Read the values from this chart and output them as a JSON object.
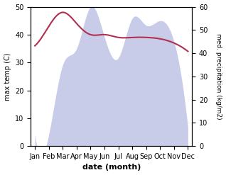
{
  "months": [
    "Jan",
    "Feb",
    "Mar",
    "Apr",
    "May",
    "Jun",
    "Jul",
    "Aug",
    "Sep",
    "Oct",
    "Nov",
    "Dec"
  ],
  "temp_max": [
    36,
    43,
    48,
    44,
    40,
    40,
    39,
    39,
    39,
    38.5,
    37,
    34
  ],
  "precipitation": [
    5,
    5,
    35,
    42,
    60,
    47,
    38,
    55,
    52,
    54,
    45,
    8
  ],
  "temp_color": "#b03050",
  "precip_fill_color": "#c8cce8",
  "xlabel": "date (month)",
  "ylabel_left": "max temp (C)",
  "ylabel_right": "med. precipitation (kg/m2)",
  "ylim_left": [
    0,
    50
  ],
  "ylim_right": [
    0,
    60
  ],
  "yticks_left": [
    0,
    10,
    20,
    30,
    40,
    50
  ],
  "yticks_right": [
    0,
    10,
    20,
    30,
    40,
    50,
    60
  ],
  "bg_color": "#ffffff"
}
